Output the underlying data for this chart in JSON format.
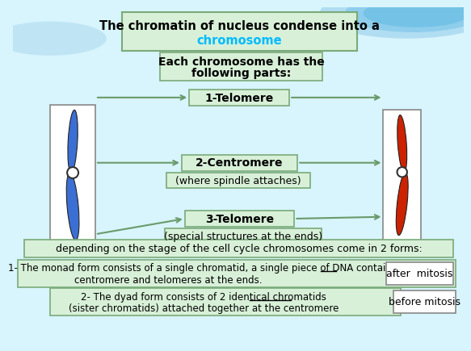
{
  "title_line1": "The chromatin of nucleus condense into a",
  "title_line2": "chromosome",
  "title_line2_color": "#00bbff",
  "title_box_color": "#d8f0d8",
  "title_box_edge": "#7aaa7a",
  "parts_header_1": "Each chromosome has the",
  "parts_header_2": "following parts:",
  "parts_box_color": "#d8f0d8",
  "parts_box_edge": "#7aaa7a",
  "label1": "1-Telomere",
  "label1_box_color": "#d8f0d8",
  "label1_box_edge": "#7aaa7a",
  "label2": "2-Centromere",
  "label2_sub": "(where spindle attaches)",
  "label2_box_color": "#d8f0d8",
  "label2_box_edge": "#7aaa7a",
  "label3": "3-Telomere",
  "label3_sub": "(special structures at the ends)",
  "label3_box_color": "#d8f0d8",
  "label3_box_edge": "#7aaa7a",
  "bottom1": "depending on the stage of the cell cycle chromosomes come in 2 forms:",
  "bottom1_box_color": "#d8f0d8",
  "bottom1_box_edge": "#7aaa7a",
  "bottom2_line1": "1- The monad form consists of a single chromatid, a single piece of DNA containing a",
  "bottom2_line2": "centromere and telomeres at the ends.",
  "bottom2_box_color": "#d8f0d8",
  "bottom2_box_edge": "#7aaa7a",
  "bottom2_tag": "after  mitosis",
  "bottom2_tag_box_color": "#ffffff",
  "bottom2_tag_box_edge": "#888888",
  "bottom3_line1": "2- The dyad form consists of 2 identical chromatids",
  "bottom3_line2": "(sister chromatids) attached together at the centromere",
  "bottom3_box_color": "#d8f0d8",
  "bottom3_box_edge": "#7aaa7a",
  "bottom3_tag": "before mitosis",
  "bottom3_tag_box_color": "#ffffff",
  "bottom3_tag_box_edge": "#888888",
  "arrow_color": "#6a9a6a",
  "bg_color": "#d8f4fc",
  "chrom_left_color": "#3b6fd4",
  "chrom_right_color": "#cc2200"
}
